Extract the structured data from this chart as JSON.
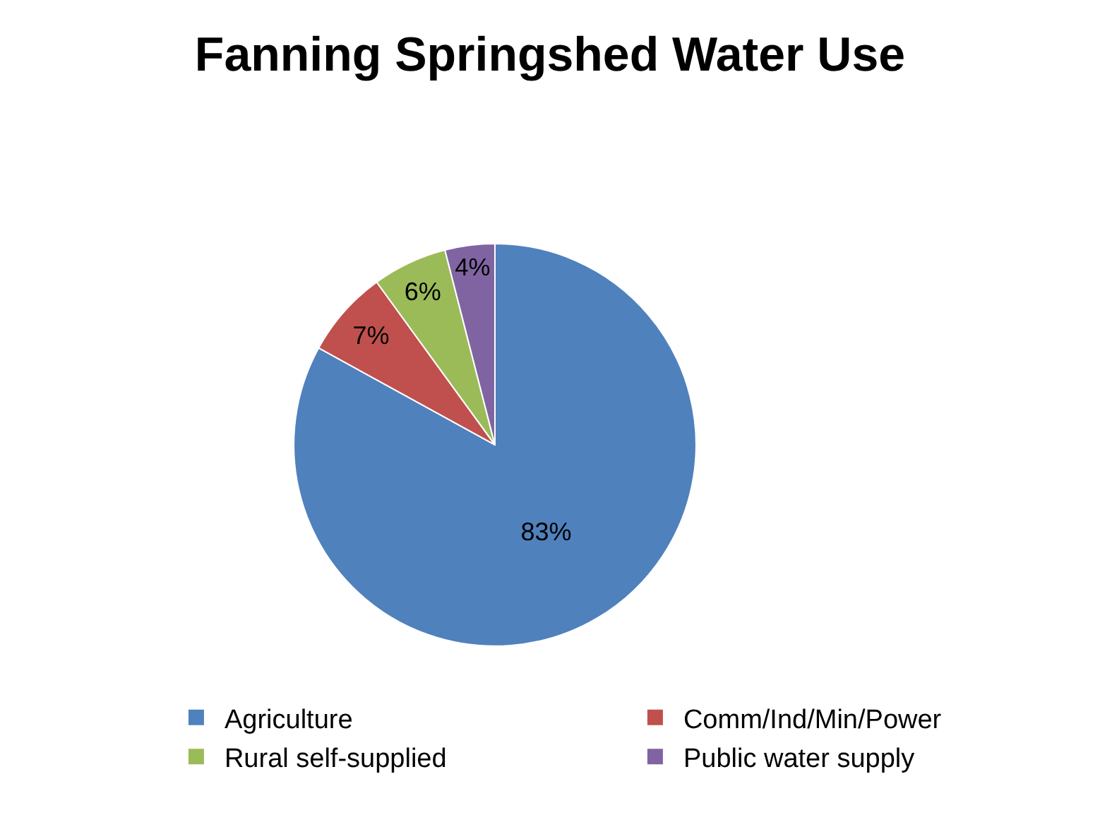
{
  "chart_data": {
    "type": "pie",
    "title": "Fanning Springshed Water Use",
    "categories": [
      "Agriculture",
      "Comm/Ind/Min/Power",
      "Rural self-supplied",
      "Public water supply"
    ],
    "values": [
      83,
      7,
      6,
      4
    ],
    "colors": [
      "#4f81bd",
      "#c0504d",
      "#9bbb59",
      "#8064a2"
    ],
    "value_labels": [
      "83%",
      "7%",
      "6%",
      "4%"
    ],
    "legend": "bottom"
  }
}
